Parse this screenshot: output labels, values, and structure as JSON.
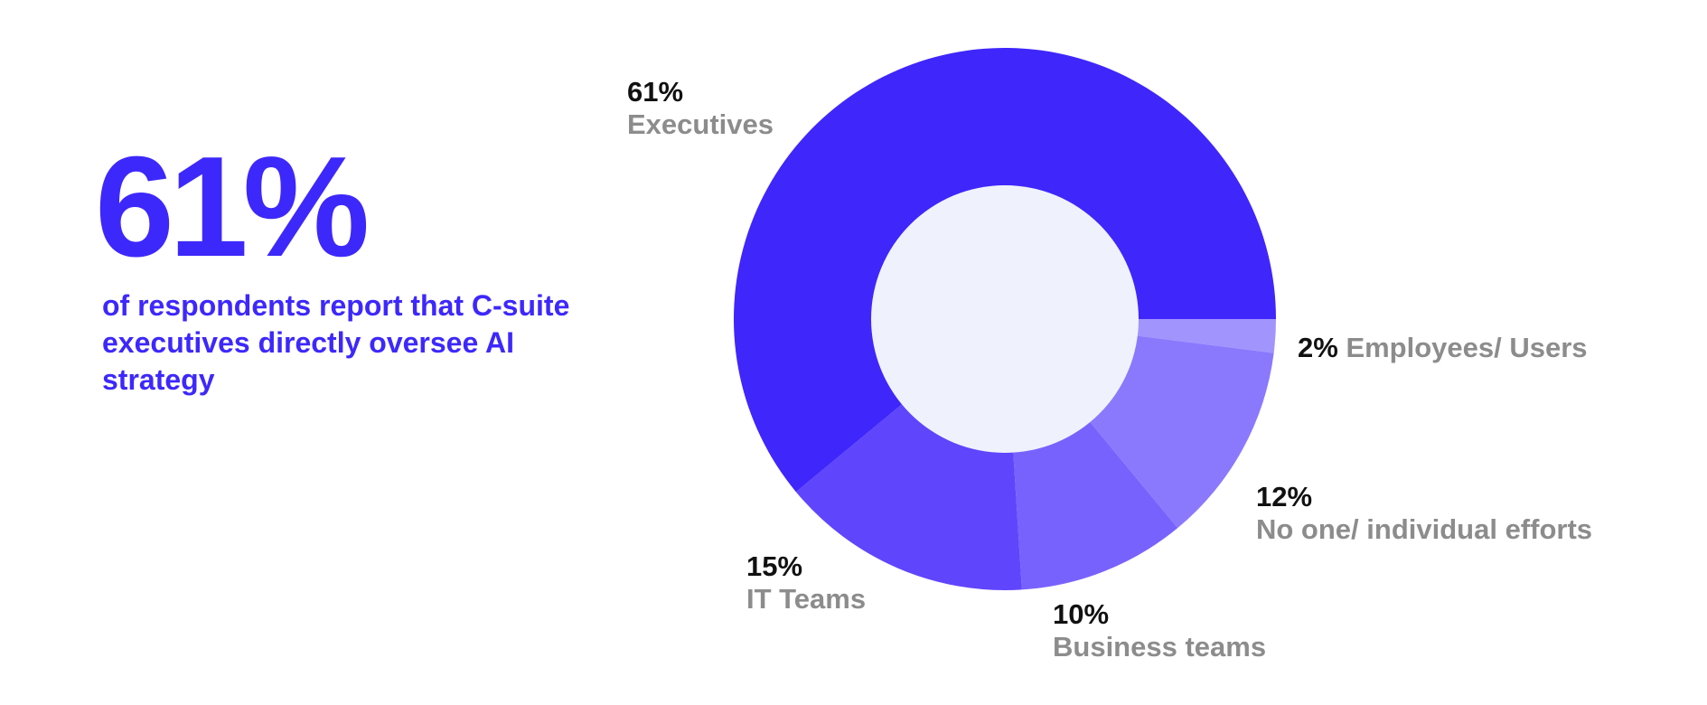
{
  "headline": {
    "value": "61%",
    "caption": "of respondents report that C-suite executives directly oversee AI strategy"
  },
  "chart_data": {
    "type": "pie",
    "style": "donut",
    "title": "",
    "slices": [
      {
        "name": "Executives",
        "value": 61,
        "label": "61%",
        "color": "#3f26fb"
      },
      {
        "name": "IT Teams",
        "value": 15,
        "label": "15%",
        "color": "#5f45fc"
      },
      {
        "name": "Business teams",
        "value": 10,
        "label": "10%",
        "color": "#7862fd"
      },
      {
        "name": "No one/ individual efforts",
        "value": 12,
        "label": "12%",
        "color": "#8a79fd"
      },
      {
        "name": "Employees/ Users",
        "value": 2,
        "label": "2%",
        "color": "#a294fd"
      }
    ],
    "start": "3 o'clock, clockwise from Employees/ Users; Executives drawn counter-clockwise",
    "center_color": "#eff2fd"
  }
}
